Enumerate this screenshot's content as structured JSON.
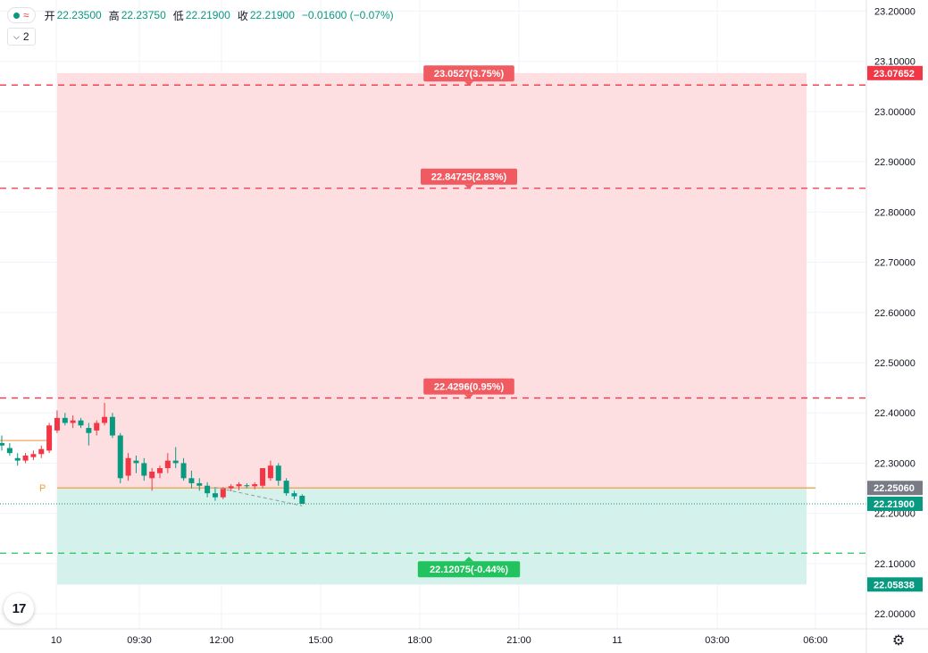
{
  "legend": {
    "open_label": "开",
    "open_value": "22.23500",
    "high_label": "高",
    "high_value": "22.23750",
    "low_label": "低",
    "low_value": "22.21900",
    "close_label": "收",
    "close_value": "22.21900",
    "change_value": "−0.01600 (−0.07%)"
  },
  "indicator_pill": {
    "count": "2"
  },
  "colors": {
    "up": "#f23645",
    "down": "#089981",
    "target_zone": "#fddfe2",
    "stop_zone": "#d4f1eb",
    "entry_line": "#f0a860",
    "target_line": "#f23645",
    "stop_line": "#22c35e",
    "axis_grey": "#787b86"
  },
  "icons": {
    "settings": "gear-icon",
    "logo": "tradingview-logo-icon",
    "chevron": "chevron-down-icon",
    "status_dot": "dot-icon",
    "wave": "wave-icon"
  },
  "chart_data": {
    "type": "candlestick",
    "y_axis": {
      "range": [
        21.97,
        23.222
      ],
      "ticks": [
        "23.20000",
        "23.10000",
        "23.00000",
        "22.90000",
        "22.80000",
        "22.70000",
        "22.60000",
        "22.50000",
        "22.40000",
        "22.30000",
        "22.20000",
        "22.10000",
        "22.00000"
      ]
    },
    "x_axis": {
      "ticks": [
        "10",
        "09:30",
        "12:00",
        "15:00",
        "18:00",
        "21:00",
        "11",
        "03:00",
        "06:00"
      ]
    },
    "candles": [
      {
        "o": 22.34,
        "h": 22.355,
        "l": 22.325,
        "c": 22.335
      },
      {
        "o": 22.33,
        "h": 22.34,
        "l": 22.315,
        "c": 22.32
      },
      {
        "o": 22.31,
        "h": 22.32,
        "l": 22.295,
        "c": 22.305
      },
      {
        "o": 22.305,
        "h": 22.32,
        "l": 22.3,
        "c": 22.315
      },
      {
        "o": 22.312,
        "h": 22.325,
        "l": 22.306,
        "c": 22.318
      },
      {
        "o": 22.318,
        "h": 22.335,
        "l": 22.31,
        "c": 22.328
      },
      {
        "o": 22.325,
        "h": 22.38,
        "l": 22.32,
        "c": 22.375
      },
      {
        "o": 22.365,
        "h": 22.405,
        "l": 22.36,
        "c": 22.39
      },
      {
        "o": 22.39,
        "h": 22.4,
        "l": 22.375,
        "c": 22.38
      },
      {
        "o": 22.38,
        "h": 22.395,
        "l": 22.37,
        "c": 22.385
      },
      {
        "o": 22.385,
        "h": 22.39,
        "l": 22.37,
        "c": 22.375
      },
      {
        "o": 22.37,
        "h": 22.38,
        "l": 22.335,
        "c": 22.36
      },
      {
        "o": 22.365,
        "h": 22.385,
        "l": 22.355,
        "c": 22.38
      },
      {
        "o": 22.38,
        "h": 22.42,
        "l": 22.375,
        "c": 22.392
      },
      {
        "o": 22.392,
        "h": 22.4,
        "l": 22.35,
        "c": 22.355
      },
      {
        "o": 22.355,
        "h": 22.36,
        "l": 22.26,
        "c": 22.27
      },
      {
        "o": 22.275,
        "h": 22.32,
        "l": 22.265,
        "c": 22.31
      },
      {
        "o": 22.305,
        "h": 22.315,
        "l": 22.28,
        "c": 22.3
      },
      {
        "o": 22.3,
        "h": 22.31,
        "l": 22.265,
        "c": 22.275
      },
      {
        "o": 22.27,
        "h": 22.29,
        "l": 22.245,
        "c": 22.283
      },
      {
        "o": 22.28,
        "h": 22.295,
        "l": 22.27,
        "c": 22.29
      },
      {
        "o": 22.29,
        "h": 22.32,
        "l": 22.28,
        "c": 22.305
      },
      {
        "o": 22.305,
        "h": 22.332,
        "l": 22.29,
        "c": 22.3
      },
      {
        "o": 22.3,
        "h": 22.31,
        "l": 22.265,
        "c": 22.27
      },
      {
        "o": 22.27,
        "h": 22.285,
        "l": 22.25,
        "c": 22.26
      },
      {
        "o": 22.26,
        "h": 22.27,
        "l": 22.245,
        "c": 22.255
      },
      {
        "o": 22.255,
        "h": 22.262,
        "l": 22.232,
        "c": 22.24
      },
      {
        "o": 22.24,
        "h": 22.25,
        "l": 22.225,
        "c": 22.232
      },
      {
        "o": 22.232,
        "h": 22.252,
        "l": 22.228,
        "c": 22.25
      },
      {
        "o": 22.25,
        "h": 22.258,
        "l": 22.244,
        "c": 22.254
      },
      {
        "o": 22.254,
        "h": 22.262,
        "l": 22.246,
        "c": 22.258
      },
      {
        "o": 22.256,
        "h": 22.26,
        "l": 22.25,
        "c": 22.254
      },
      {
        "o": 22.254,
        "h": 22.262,
        "l": 22.248,
        "c": 22.258
      },
      {
        "o": 22.255,
        "h": 22.28,
        "l": 22.25,
        "c": 22.29
      },
      {
        "o": 22.27,
        "h": 22.305,
        "l": 22.265,
        "c": 22.295
      },
      {
        "o": 22.295,
        "h": 22.3,
        "l": 22.255,
        "c": 22.265
      },
      {
        "o": 22.265,
        "h": 22.27,
        "l": 22.235,
        "c": 22.24
      },
      {
        "o": 22.24,
        "h": 22.245,
        "l": 22.228,
        "c": 22.234
      },
      {
        "o": 22.235,
        "h": 22.238,
        "l": 22.219,
        "c": 22.219
      }
    ],
    "position": {
      "entry": 22.2506,
      "target_top": 23.07652,
      "stop_bottom": 22.05838,
      "current_price": 22.219
    },
    "horizontal_levels": [
      {
        "price": 23.0527,
        "label": "23.0527(3.75%)",
        "kind": "target"
      },
      {
        "price": 22.84725,
        "label": "22.84725(2.83%)",
        "kind": "target"
      },
      {
        "price": 22.4296,
        "label": "22.4296(0.95%)",
        "kind": "target"
      },
      {
        "price": 22.12075,
        "label": "22.12075(-0.44%)",
        "kind": "stop"
      }
    ],
    "price_tags": [
      {
        "price": 23.07652,
        "label": "23.07652",
        "kind": "target"
      },
      {
        "price": 22.2506,
        "label": "22.25060",
        "kind": "entry"
      },
      {
        "price": 22.219,
        "label": "22.21900",
        "kind": "current"
      },
      {
        "price": 22.05838,
        "label": "22.05838",
        "kind": "stop"
      }
    ],
    "pivot_label": "P"
  }
}
